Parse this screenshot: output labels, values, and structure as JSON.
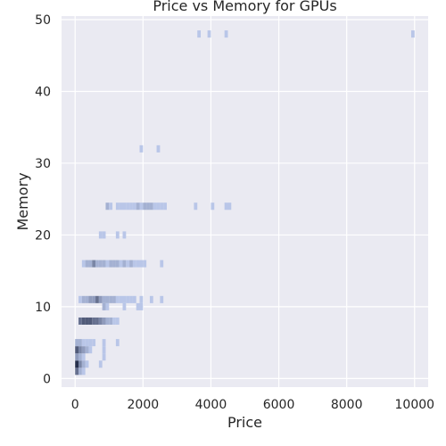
{
  "chart_data": {
    "type": "heatmap",
    "title": "Price vs Memory for GPUs",
    "xlabel": "Price",
    "ylabel": "Memory",
    "xlim": [
      -400,
      10400
    ],
    "ylim": [
      -1.2,
      50.5
    ],
    "xticks": [
      0,
      2000,
      4000,
      6000,
      8000,
      10000
    ],
    "xtick_labels": [
      "0",
      "2000",
      "4000",
      "6000",
      "8000",
      "10000"
    ],
    "yticks": [
      0,
      10,
      20,
      30,
      40,
      50
    ],
    "ytick_labels": [
      "0",
      "10",
      "20",
      "30",
      "40",
      "50"
    ],
    "grid": true,
    "bin_width_x": 100,
    "bin_height_y": 1,
    "colors": {
      "background": "#eaeaf2",
      "grid": "#ffffff",
      "cell_light": "#b9c6e8",
      "cell_dark": "#27304d"
    },
    "cells": [
      {
        "x": 0,
        "y": 1,
        "count": 5
      },
      {
        "x": 100,
        "y": 1,
        "count": 2
      },
      {
        "x": 200,
        "y": 1,
        "count": 1
      },
      {
        "x": 0,
        "y": 2,
        "count": 8
      },
      {
        "x": 100,
        "y": 2,
        "count": 4
      },
      {
        "x": 200,
        "y": 2,
        "count": 2
      },
      {
        "x": 300,
        "y": 2,
        "count": 1
      },
      {
        "x": 700,
        "y": 2,
        "count": 1
      },
      {
        "x": 0,
        "y": 3,
        "count": 3
      },
      {
        "x": 100,
        "y": 3,
        "count": 2
      },
      {
        "x": 200,
        "y": 3,
        "count": 1
      },
      {
        "x": 800,
        "y": 3,
        "count": 1
      },
      {
        "x": 0,
        "y": 4,
        "count": 6
      },
      {
        "x": 100,
        "y": 4,
        "count": 4
      },
      {
        "x": 200,
        "y": 4,
        "count": 3
      },
      {
        "x": 300,
        "y": 4,
        "count": 2
      },
      {
        "x": 400,
        "y": 4,
        "count": 1
      },
      {
        "x": 800,
        "y": 4,
        "count": 1
      },
      {
        "x": 0,
        "y": 5,
        "count": 2
      },
      {
        "x": 100,
        "y": 5,
        "count": 2
      },
      {
        "x": 200,
        "y": 5,
        "count": 1
      },
      {
        "x": 300,
        "y": 5,
        "count": 1
      },
      {
        "x": 400,
        "y": 5,
        "count": 1
      },
      {
        "x": 500,
        "y": 5,
        "count": 1
      },
      {
        "x": 800,
        "y": 5,
        "count": 1
      },
      {
        "x": 1200,
        "y": 5,
        "count": 1
      },
      {
        "x": 100,
        "y": 8,
        "count": 5
      },
      {
        "x": 200,
        "y": 8,
        "count": 6
      },
      {
        "x": 300,
        "y": 8,
        "count": 6
      },
      {
        "x": 400,
        "y": 8,
        "count": 6
      },
      {
        "x": 500,
        "y": 8,
        "count": 5
      },
      {
        "x": 600,
        "y": 8,
        "count": 5
      },
      {
        "x": 700,
        "y": 8,
        "count": 4
      },
      {
        "x": 800,
        "y": 8,
        "count": 3
      },
      {
        "x": 900,
        "y": 8,
        "count": 2
      },
      {
        "x": 1000,
        "y": 8,
        "count": 2
      },
      {
        "x": 1100,
        "y": 8,
        "count": 1
      },
      {
        "x": 1200,
        "y": 8,
        "count": 1
      },
      {
        "x": 800,
        "y": 10,
        "count": 2
      },
      {
        "x": 900,
        "y": 10,
        "count": 1
      },
      {
        "x": 1400,
        "y": 10,
        "count": 1
      },
      {
        "x": 1800,
        "y": 10,
        "count": 1
      },
      {
        "x": 1900,
        "y": 10,
        "count": 1
      },
      {
        "x": 100,
        "y": 11,
        "count": 1
      },
      {
        "x": 200,
        "y": 11,
        "count": 2
      },
      {
        "x": 300,
        "y": 11,
        "count": 2
      },
      {
        "x": 400,
        "y": 11,
        "count": 3
      },
      {
        "x": 500,
        "y": 11,
        "count": 3
      },
      {
        "x": 600,
        "y": 11,
        "count": 5
      },
      {
        "x": 700,
        "y": 11,
        "count": 3
      },
      {
        "x": 800,
        "y": 11,
        "count": 2
      },
      {
        "x": 900,
        "y": 11,
        "count": 2
      },
      {
        "x": 1000,
        "y": 11,
        "count": 2
      },
      {
        "x": 1100,
        "y": 11,
        "count": 2
      },
      {
        "x": 1200,
        "y": 11,
        "count": 1
      },
      {
        "x": 1300,
        "y": 11,
        "count": 1
      },
      {
        "x": 1400,
        "y": 11,
        "count": 1
      },
      {
        "x": 1500,
        "y": 11,
        "count": 1
      },
      {
        "x": 1600,
        "y": 11,
        "count": 1
      },
      {
        "x": 1700,
        "y": 11,
        "count": 1
      },
      {
        "x": 1900,
        "y": 11,
        "count": 1
      },
      {
        "x": 2200,
        "y": 11,
        "count": 1
      },
      {
        "x": 2500,
        "y": 11,
        "count": 1
      },
      {
        "x": 200,
        "y": 16,
        "count": 1
      },
      {
        "x": 300,
        "y": 16,
        "count": 2
      },
      {
        "x": 400,
        "y": 16,
        "count": 2
      },
      {
        "x": 500,
        "y": 16,
        "count": 4
      },
      {
        "x": 600,
        "y": 16,
        "count": 2
      },
      {
        "x": 700,
        "y": 16,
        "count": 2
      },
      {
        "x": 800,
        "y": 16,
        "count": 2
      },
      {
        "x": 900,
        "y": 16,
        "count": 1
      },
      {
        "x": 1000,
        "y": 16,
        "count": 2
      },
      {
        "x": 1100,
        "y": 16,
        "count": 2
      },
      {
        "x": 1200,
        "y": 16,
        "count": 2
      },
      {
        "x": 1300,
        "y": 16,
        "count": 1
      },
      {
        "x": 1400,
        "y": 16,
        "count": 2
      },
      {
        "x": 1500,
        "y": 16,
        "count": 1
      },
      {
        "x": 1600,
        "y": 16,
        "count": 2
      },
      {
        "x": 1700,
        "y": 16,
        "count": 1
      },
      {
        "x": 1800,
        "y": 16,
        "count": 1
      },
      {
        "x": 1900,
        "y": 16,
        "count": 1
      },
      {
        "x": 2000,
        "y": 16,
        "count": 1
      },
      {
        "x": 2500,
        "y": 16,
        "count": 1
      },
      {
        "x": 700,
        "y": 20,
        "count": 1
      },
      {
        "x": 800,
        "y": 20,
        "count": 1
      },
      {
        "x": 1200,
        "y": 20,
        "count": 1
      },
      {
        "x": 1400,
        "y": 20,
        "count": 1
      },
      {
        "x": 900,
        "y": 24,
        "count": 2
      },
      {
        "x": 1000,
        "y": 24,
        "count": 1
      },
      {
        "x": 1200,
        "y": 24,
        "count": 1
      },
      {
        "x": 1300,
        "y": 24,
        "count": 1
      },
      {
        "x": 1400,
        "y": 24,
        "count": 1
      },
      {
        "x": 1500,
        "y": 24,
        "count": 1
      },
      {
        "x": 1600,
        "y": 24,
        "count": 1
      },
      {
        "x": 1700,
        "y": 24,
        "count": 1
      },
      {
        "x": 1800,
        "y": 24,
        "count": 2
      },
      {
        "x": 1900,
        "y": 24,
        "count": 1
      },
      {
        "x": 2000,
        "y": 24,
        "count": 2
      },
      {
        "x": 2100,
        "y": 24,
        "count": 2
      },
      {
        "x": 2200,
        "y": 24,
        "count": 2
      },
      {
        "x": 2300,
        "y": 24,
        "count": 1
      },
      {
        "x": 2400,
        "y": 24,
        "count": 1
      },
      {
        "x": 2500,
        "y": 24,
        "count": 1
      },
      {
        "x": 2600,
        "y": 24,
        "count": 1
      },
      {
        "x": 3500,
        "y": 24,
        "count": 1
      },
      {
        "x": 4000,
        "y": 24,
        "count": 1
      },
      {
        "x": 4400,
        "y": 24,
        "count": 1
      },
      {
        "x": 4500,
        "y": 24,
        "count": 1
      },
      {
        "x": 1900,
        "y": 32,
        "count": 1
      },
      {
        "x": 2400,
        "y": 32,
        "count": 1
      },
      {
        "x": 3600,
        "y": 48,
        "count": 1
      },
      {
        "x": 3900,
        "y": 48,
        "count": 1
      },
      {
        "x": 4400,
        "y": 48,
        "count": 1
      },
      {
        "x": 9900,
        "y": 48,
        "count": 1
      }
    ]
  }
}
